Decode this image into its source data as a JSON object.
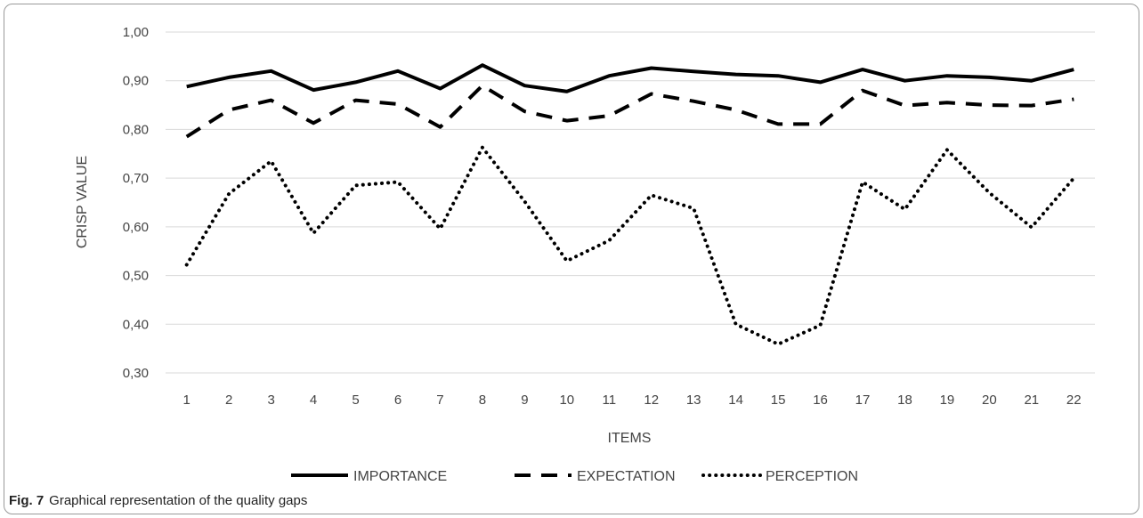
{
  "caption": {
    "label": "Fig. 7",
    "text": "Graphical representation of the quality gaps"
  },
  "chart_data": {
    "type": "line",
    "xlabel": "ITEMS",
    "ylabel": "CRISP VALUE",
    "categories": [
      "1",
      "2",
      "3",
      "4",
      "5",
      "6",
      "7",
      "8",
      "9",
      "10",
      "11",
      "12",
      "13",
      "14",
      "15",
      "16",
      "17",
      "18",
      "19",
      "20",
      "21",
      "22"
    ],
    "ylim": [
      0.3,
      1.0
    ],
    "yticks": [
      "0,30",
      "0,40",
      "0,50",
      "0,60",
      "0,70",
      "0,80",
      "0,90",
      "1,00"
    ],
    "grid": true,
    "legend": "bottom",
    "series": [
      {
        "name": "IMPORTANCE",
        "style": "solid",
        "color": "#000000",
        "values": [
          0.888,
          0.907,
          0.92,
          0.881,
          0.897,
          0.92,
          0.884,
          0.932,
          0.89,
          0.878,
          0.91,
          0.926,
          0.919,
          0.913,
          0.91,
          0.897,
          0.923,
          0.9,
          0.91,
          0.907,
          0.9,
          0.923
        ]
      },
      {
        "name": "EXPECTATION",
        "style": "dashed",
        "color": "#000000",
        "values": [
          0.785,
          0.84,
          0.86,
          0.813,
          0.86,
          0.852,
          0.805,
          0.89,
          0.837,
          0.818,
          0.828,
          0.873,
          0.858,
          0.84,
          0.811,
          0.811,
          0.88,
          0.849,
          0.855,
          0.85,
          0.849,
          0.862
        ]
      },
      {
        "name": "PERCEPTION",
        "style": "dotted",
        "color": "#000000",
        "values": [
          0.522,
          0.668,
          0.735,
          0.587,
          0.685,
          0.692,
          0.596,
          0.763,
          0.652,
          0.53,
          0.572,
          0.665,
          0.638,
          0.4,
          0.359,
          0.398,
          0.692,
          0.636,
          0.758,
          0.67,
          0.599,
          0.7
        ]
      }
    ]
  }
}
